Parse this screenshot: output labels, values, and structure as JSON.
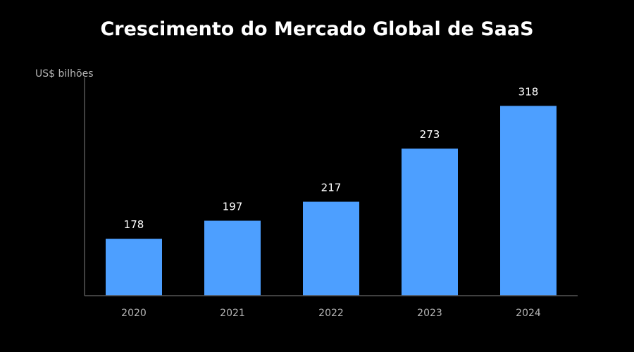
{
  "chart_data": {
    "type": "bar",
    "title": "Crescimento do Mercado Global de SaaS",
    "ylabel": "US$ bilhões",
    "xlabel": "",
    "categories": [
      "2020",
      "2021",
      "2022",
      "2023",
      "2024"
    ],
    "values": [
      178,
      197,
      217,
      273,
      318
    ],
    "data_labels": [
      "178",
      "197",
      "217",
      "273",
      "318"
    ],
    "ylim": [
      118,
      348
    ],
    "grid": false,
    "legend": "none",
    "colors": {
      "bar": "#4d9fff",
      "background": "#000000",
      "axis": "#555555",
      "title": "#ffffff",
      "tick_label": "#b4b4b4",
      "data_label": "#ffffff"
    }
  }
}
